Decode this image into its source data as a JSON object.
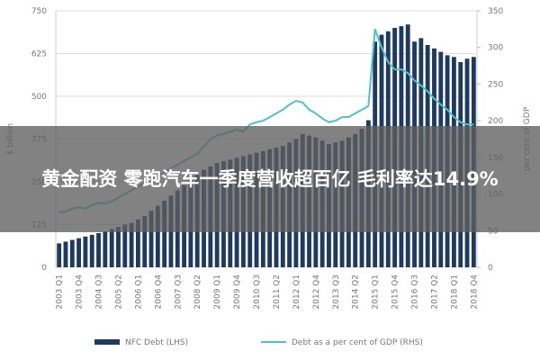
{
  "banner": {
    "title": "黄金配资 零跑汽车一季度营收超百亿 毛利率达14.9%"
  },
  "chart_data": {
    "type": "bar-line",
    "ylabel": "$ billion",
    "y2label": "per cent of GDP",
    "categories": [
      "2003 Q1",
      null,
      null,
      "2003 Q4",
      null,
      null,
      "2004 Q3",
      null,
      null,
      "2005 Q2",
      null,
      null,
      "2006 Q1",
      null,
      null,
      "2006 Q4",
      null,
      null,
      "2007 Q3",
      null,
      null,
      "2008 Q2",
      null,
      null,
      "2009 Q1",
      null,
      null,
      "2009 Q4",
      null,
      null,
      "2010 Q3",
      null,
      null,
      "2011 Q2",
      null,
      null,
      "2012 Q1",
      null,
      null,
      "2012 Q4",
      null,
      null,
      "2013 Q3",
      null,
      null,
      "2014 Q2",
      null,
      null,
      "2015 Q1",
      null,
      null,
      "2015 Q4",
      null,
      null,
      "2016 Q3",
      null,
      null,
      "2017 Q2",
      null,
      null,
      "2018 Q1",
      null,
      null,
      "2018 Q4"
    ],
    "series": [
      {
        "name": "NFC Debt (LHS)",
        "color": "#1f3a5f",
        "kind": "bar",
        "values": [
          70,
          75,
          80,
          85,
          90,
          95,
          100,
          105,
          112,
          118,
          125,
          130,
          140,
          150,
          165,
          180,
          195,
          210,
          225,
          240,
          255,
          270,
          285,
          295,
          305,
          310,
          315,
          320,
          325,
          330,
          335,
          340,
          345,
          350,
          355,
          365,
          375,
          390,
          385,
          380,
          370,
          360,
          365,
          370,
          380,
          390,
          405,
          430,
          660,
          680,
          690,
          700,
          705,
          710,
          660,
          670,
          650,
          640,
          630,
          620,
          615,
          600,
          610,
          615
        ]
      },
      {
        "name": "Debt as a per cent of GDP (RHS)",
        "color": "#4fc3c7",
        "kind": "line",
        "axis": "y2",
        "values": [
          75,
          76,
          80,
          82,
          80,
          85,
          88,
          87,
          90,
          95,
          100,
          105,
          110,
          115,
          120,
          125,
          130,
          135,
          140,
          145,
          150,
          155,
          165,
          175,
          180,
          182,
          185,
          188,
          185,
          195,
          198,
          200,
          205,
          210,
          215,
          222,
          227,
          225,
          215,
          210,
          203,
          198,
          200,
          205,
          205,
          210,
          215,
          220,
          325,
          300,
          280,
          270,
          270,
          265,
          255,
          248,
          240,
          230,
          222,
          215,
          205,
          198,
          195,
          195
        ]
      }
    ],
    "ylim": [
      0,
      750
    ],
    "yticks": [
      0,
      125,
      250,
      375,
      500,
      625,
      750
    ],
    "y2lim": [
      0,
      350
    ],
    "y2ticks": [
      0,
      50,
      100,
      150,
      200,
      250,
      300,
      350
    ],
    "grid": true
  }
}
